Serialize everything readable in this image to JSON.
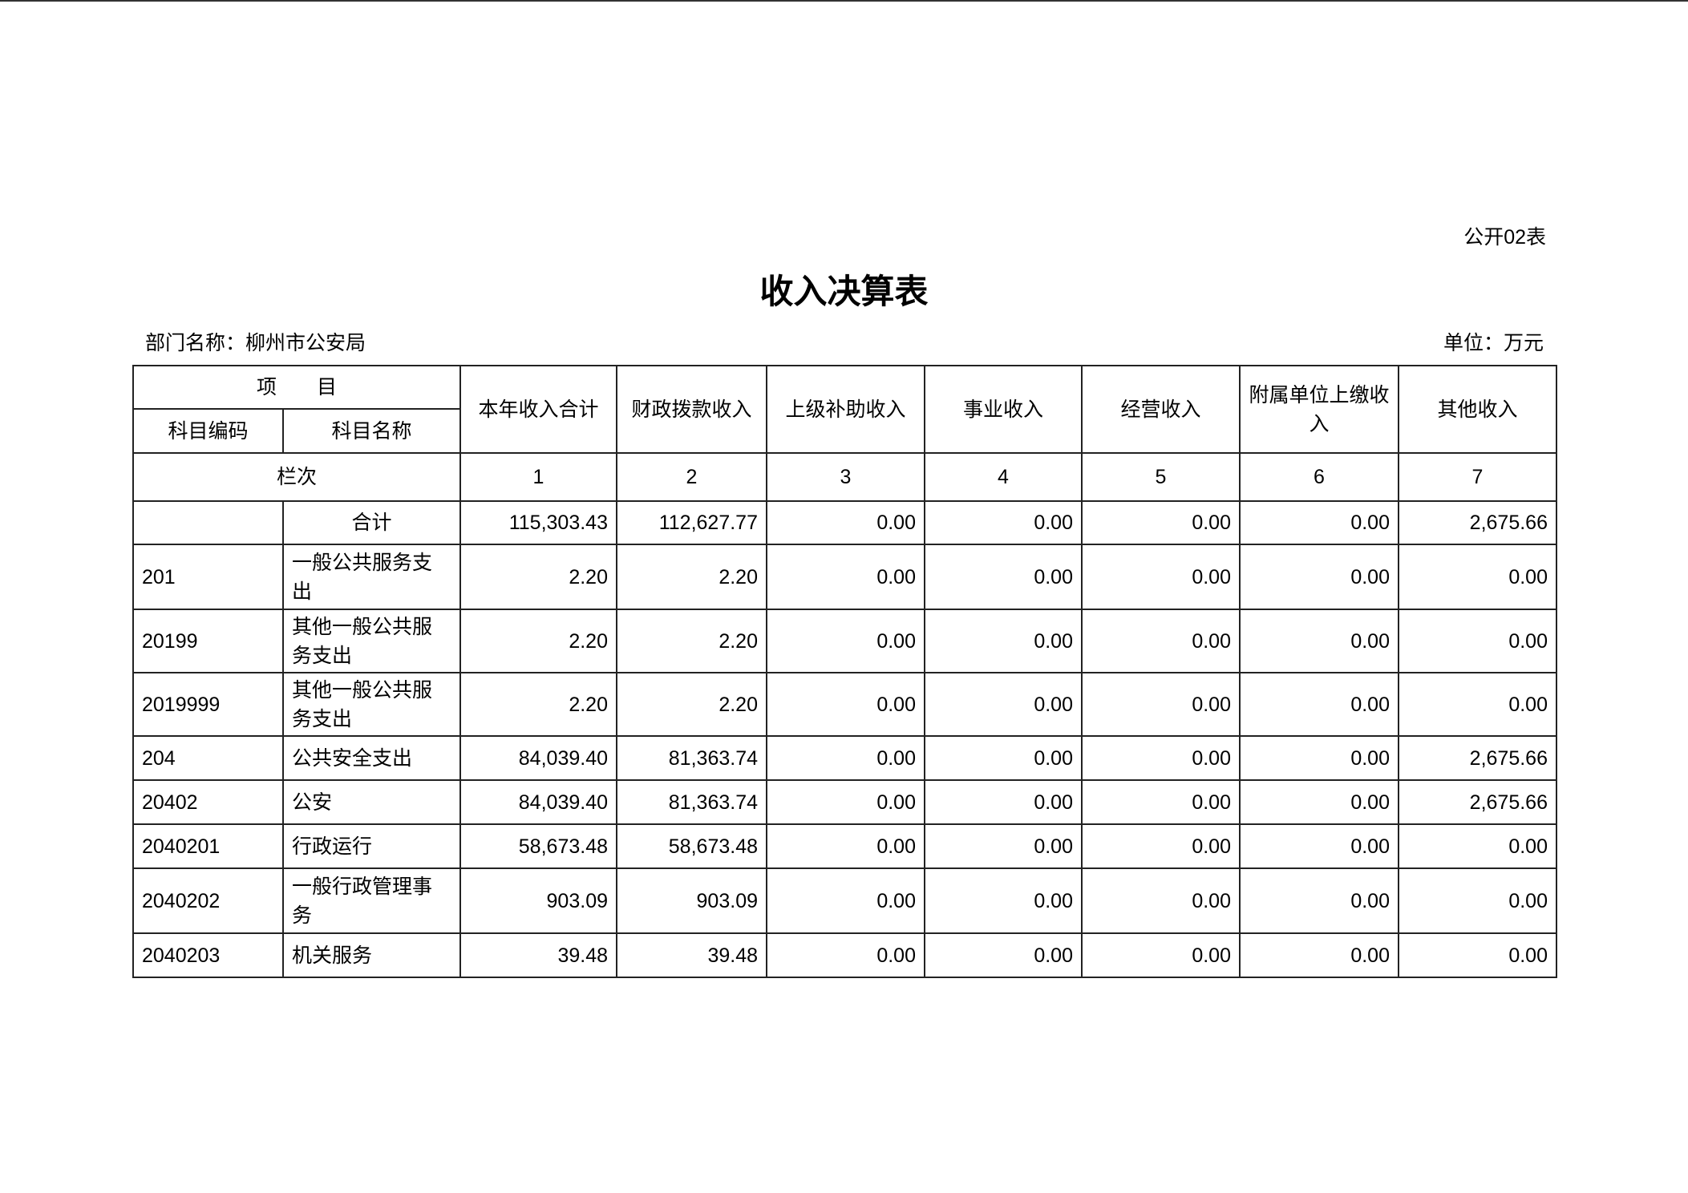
{
  "form_no": "公开02表",
  "title": "收入决算表",
  "department": "部门名称：柳州市公安局",
  "unit": "单位：万元",
  "header": {
    "item": "项　　目",
    "code": "科目编码",
    "name": "科目名称",
    "columns": [
      "本年收入合计",
      "财政拨款收入",
      "上级补助收入",
      "事业收入",
      "经营收入",
      "附属单位上缴收入",
      "其他收入"
    ],
    "row_label": "栏次",
    "column_numbers": [
      "1",
      "2",
      "3",
      "4",
      "5",
      "6",
      "7"
    ]
  },
  "rows": [
    {
      "code": "",
      "name": "合计",
      "values": [
        "115,303.43",
        "112,627.77",
        "0.00",
        "0.00",
        "0.00",
        "0.00",
        "2,675.66"
      ]
    },
    {
      "code": "201",
      "name": "一般公共服务支出",
      "values": [
        "2.20",
        "2.20",
        "0.00",
        "0.00",
        "0.00",
        "0.00",
        "0.00"
      ]
    },
    {
      "code": "20199",
      "name": "其他一般公共服务支出",
      "values": [
        "2.20",
        "2.20",
        "0.00",
        "0.00",
        "0.00",
        "0.00",
        "0.00"
      ]
    },
    {
      "code": "2019999",
      "name": "其他一般公共服务支出",
      "values": [
        "2.20",
        "2.20",
        "0.00",
        "0.00",
        "0.00",
        "0.00",
        "0.00"
      ]
    },
    {
      "code": "204",
      "name": "公共安全支出",
      "values": [
        "84,039.40",
        "81,363.74",
        "0.00",
        "0.00",
        "0.00",
        "0.00",
        "2,675.66"
      ]
    },
    {
      "code": "20402",
      "name": "公安",
      "values": [
        "84,039.40",
        "81,363.74",
        "0.00",
        "0.00",
        "0.00",
        "0.00",
        "2,675.66"
      ]
    },
    {
      "code": "2040201",
      "name": "行政运行",
      "values": [
        "58,673.48",
        "58,673.48",
        "0.00",
        "0.00",
        "0.00",
        "0.00",
        "0.00"
      ]
    },
    {
      "code": "2040202",
      "name": "一般行政管理事务",
      "values": [
        "903.09",
        "903.09",
        "0.00",
        "0.00",
        "0.00",
        "0.00",
        "0.00"
      ]
    },
    {
      "code": "2040203",
      "name": "机关服务",
      "values": [
        "39.48",
        "39.48",
        "0.00",
        "0.00",
        "0.00",
        "0.00",
        "0.00"
      ]
    }
  ]
}
